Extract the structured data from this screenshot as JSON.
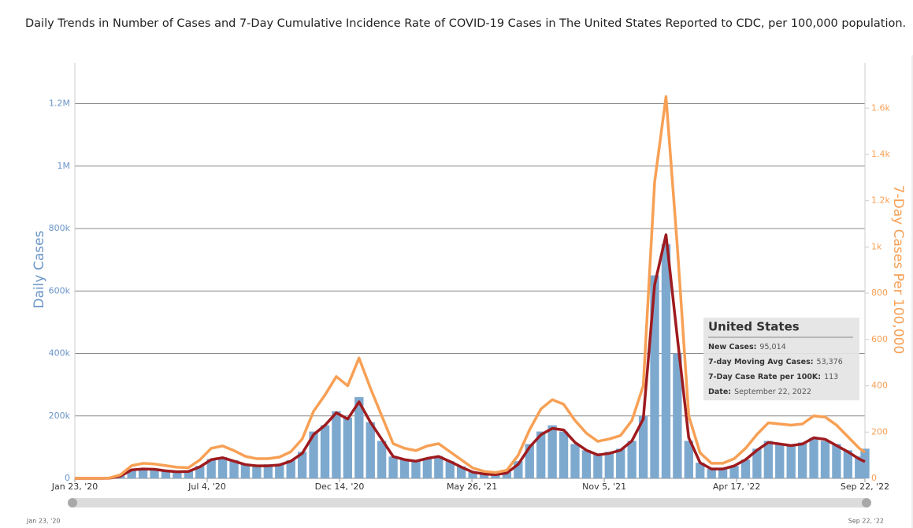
{
  "chart_data": {
    "type": "combo",
    "title": "Daily Trends in Number of Cases and 7-Day Cumulative Incidence Rate of COVID-19 Cases in The United States Reported to CDC, per 100,000 population.",
    "y_label": "Daily Cases",
    "y2_label": "7-Day Cases Per 100,000",
    "x": [
      "2020-01-23",
      "2020-02-06",
      "2020-02-20",
      "2020-03-05",
      "2020-03-19",
      "2020-04-02",
      "2020-04-16",
      "2020-04-30",
      "2020-05-14",
      "2020-05-28",
      "2020-06-11",
      "2020-06-25",
      "2020-07-09",
      "2020-07-23",
      "2020-08-06",
      "2020-08-20",
      "2020-09-03",
      "2020-09-17",
      "2020-10-01",
      "2020-10-15",
      "2020-10-29",
      "2020-11-12",
      "2020-11-26",
      "2020-12-10",
      "2020-12-24",
      "2021-01-07",
      "2021-01-21",
      "2021-02-04",
      "2021-02-18",
      "2021-03-04",
      "2021-03-18",
      "2021-04-01",
      "2021-04-15",
      "2021-04-29",
      "2021-05-13",
      "2021-05-27",
      "2021-06-10",
      "2021-06-24",
      "2021-07-08",
      "2021-07-22",
      "2021-08-05",
      "2021-08-19",
      "2021-09-02",
      "2021-09-16",
      "2021-09-30",
      "2021-10-14",
      "2021-10-28",
      "2021-11-11",
      "2021-11-25",
      "2021-12-09",
      "2021-12-23",
      "2022-01-06",
      "2022-01-20",
      "2022-02-03",
      "2022-02-17",
      "2022-03-03",
      "2022-03-17",
      "2022-03-31",
      "2022-04-14",
      "2022-04-28",
      "2022-05-12",
      "2022-05-26",
      "2022-06-09",
      "2022-06-23",
      "2022-07-07",
      "2022-07-21",
      "2022-08-04",
      "2022-08-18",
      "2022-09-01",
      "2022-09-15",
      "2022-09-22"
    ],
    "series": [
      {
        "type": "bar",
        "color": "#7ea9cf",
        "values": [
          0,
          0,
          0,
          300,
          10000,
          30000,
          32000,
          30000,
          25000,
          22000,
          23000,
          40000,
          62000,
          68000,
          58000,
          45000,
          40000,
          45000,
          45000,
          58000,
          85000,
          150000,
          170000,
          215000,
          195000,
          260000,
          180000,
          120000,
          70000,
          62000,
          55000,
          65000,
          72000,
          55000,
          38000,
          20000,
          14000,
          12000,
          20000,
          55000,
          110000,
          150000,
          170000,
          150000,
          110000,
          90000,
          75000,
          85000,
          95000,
          120000,
          200000,
          650000,
          750000,
          400000,
          120000,
          50000,
          30000,
          30000,
          40000,
          60000,
          95000,
          120000,
          110000,
          105000,
          115000,
          130000,
          120000,
          110000,
          90000,
          70000,
          95014
        ]
      },
      {
        "type": "line",
        "color": "#9e1b1f",
        "values": [
          0,
          0,
          0,
          200,
          7000,
          27000,
          30000,
          29000,
          24000,
          21000,
          22000,
          37000,
          60000,
          66000,
          55000,
          44000,
          40000,
          40000,
          43000,
          55000,
          80000,
          140000,
          170000,
          210000,
          190000,
          245000,
          180000,
          125000,
          70000,
          60000,
          55000,
          64000,
          70000,
          54000,
          36000,
          20000,
          14000,
          12000,
          17000,
          45000,
          100000,
          140000,
          160000,
          155000,
          115000,
          90000,
          75000,
          80000,
          90000,
          120000,
          190000,
          620000,
          780000,
          450000,
          130000,
          50000,
          30000,
          30000,
          40000,
          60000,
          90000,
          115000,
          110000,
          105000,
          110000,
          130000,
          125000,
          105000,
          85000,
          62000,
          53376
        ]
      },
      {
        "type": "line",
        "axis": "y2",
        "color": "#f7a055",
        "values": [
          0,
          0,
          0,
          1,
          15,
          55,
          65,
          62,
          55,
          48,
          46,
          80,
          130,
          140,
          120,
          95,
          85,
          85,
          92,
          115,
          170,
          290,
          360,
          440,
          400,
          520,
          390,
          270,
          150,
          130,
          120,
          140,
          150,
          115,
          80,
          45,
          30,
          25,
          35,
          100,
          210,
          300,
          340,
          320,
          250,
          195,
          160,
          170,
          185,
          250,
          400,
          1280,
          1650,
          1000,
          270,
          110,
          65,
          65,
          85,
          130,
          190,
          240,
          235,
          230,
          235,
          270,
          265,
          230,
          180,
          130,
          113
        ]
      }
    ],
    "xlim": [
      "2020-01-23",
      "2022-09-22"
    ],
    "xticks": [
      {
        "value": "2020-01-23",
        "label": "Jan 23, '20"
      },
      {
        "value": "2020-07-04",
        "label": "Jul 4, '20"
      },
      {
        "value": "2020-12-14",
        "label": "Dec 14, '20"
      },
      {
        "value": "2021-05-26",
        "label": "May 26, '21"
      },
      {
        "value": "2021-11-05",
        "label": "Nov 5, '21"
      },
      {
        "value": "2022-04-17",
        "label": "Apr 17, '22"
      },
      {
        "value": "2022-09-22",
        "label": "Sep 22, '22"
      }
    ],
    "ylim": [
      0,
      1330000
    ],
    "yticks": [
      0,
      {
        "value": 200000,
        "label": "200k"
      },
      {
        "value": 400000,
        "label": "400k"
      },
      {
        "value": 600000,
        "label": "600k"
      },
      {
        "value": 800000,
        "label": "800k"
      },
      {
        "value": 1000000,
        "label": "1M"
      },
      {
        "value": 1200000,
        "label": "1.2M"
      }
    ],
    "y2lim": [
      0,
      1795
    ],
    "y2ticks": [
      0,
      200,
      400,
      600,
      800,
      {
        "value": 1000,
        "label": "1k"
      },
      {
        "value": 1200,
        "label": "1.2k"
      },
      {
        "value": 1400,
        "label": "1.4k"
      },
      {
        "value": 1600,
        "label": "1.6k"
      }
    ],
    "grid": true
  },
  "tooltip": {
    "title": "United States",
    "rows": [
      {
        "label": "New Cases:",
        "value": "95,014"
      },
      {
        "label": "7-day Moving Avg Cases:",
        "value": "53,376"
      },
      {
        "label": "7-Day Case Rate per 100K:",
        "value": "113"
      },
      {
        "label": "Date:",
        "value": "September 22, 2022"
      }
    ]
  },
  "navigator": {
    "start_label": "Jan 23, '20",
    "end_label": "Sep 22, '22"
  }
}
